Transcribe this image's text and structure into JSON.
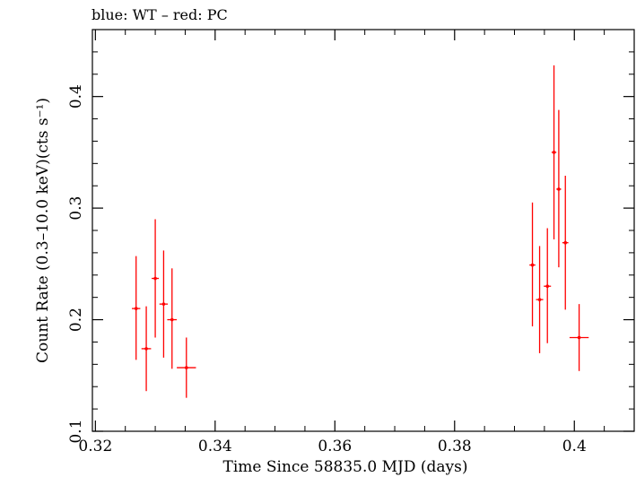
{
  "chart_data": {
    "type": "scatter",
    "title": "blue: WT – red: PC",
    "xlabel": "Time Since 58835.0 MJD (days)",
    "ylabel": "Count Rate (0.3–10.0 keV)(cts s⁻¹)",
    "xlim": [
      0.3195,
      0.41
    ],
    "ylim": [
      0.1,
      0.46
    ],
    "x_ticks": [
      0.32,
      0.34,
      0.36,
      0.38,
      0.4
    ],
    "x_tick_labels": [
      "0.32",
      "0.34",
      "0.36",
      "0.38",
      "0.4"
    ],
    "y_ticks": [
      0.1,
      0.2,
      0.3,
      0.4
    ],
    "y_tick_labels": [
      "0.1",
      "0.2",
      "0.3",
      "0.4"
    ],
    "grid": false,
    "series": [
      {
        "color": "#ff0000",
        "points": [
          {
            "x": 0.3268,
            "xerr": 0.0007,
            "y": 0.21,
            "ylo": 0.164,
            "yhi": 0.257
          },
          {
            "x": 0.3285,
            "xerr": 0.0008,
            "y": 0.174,
            "ylo": 0.136,
            "yhi": 0.212
          },
          {
            "x": 0.33,
            "xerr": 0.0006,
            "y": 0.237,
            "ylo": 0.184,
            "yhi": 0.29
          },
          {
            "x": 0.3314,
            "xerr": 0.0007,
            "y": 0.214,
            "ylo": 0.166,
            "yhi": 0.262
          },
          {
            "x": 0.3328,
            "xerr": 0.0008,
            "y": 0.2,
            "ylo": 0.156,
            "yhi": 0.246
          },
          {
            "x": 0.3352,
            "xerr": 0.0016,
            "y": 0.157,
            "ylo": 0.13,
            "yhi": 0.184
          },
          {
            "x": 0.393,
            "xerr": 0.0005,
            "y": 0.249,
            "ylo": 0.194,
            "yhi": 0.305
          },
          {
            "x": 0.3942,
            "xerr": 0.0006,
            "y": 0.218,
            "ylo": 0.17,
            "yhi": 0.266
          },
          {
            "x": 0.3955,
            "xerr": 0.0006,
            "y": 0.23,
            "ylo": 0.179,
            "yhi": 0.282
          },
          {
            "x": 0.3966,
            "xerr": 0.0004,
            "y": 0.35,
            "ylo": 0.272,
            "yhi": 0.428
          },
          {
            "x": 0.3974,
            "xerr": 0.0004,
            "y": 0.317,
            "ylo": 0.247,
            "yhi": 0.388
          },
          {
            "x": 0.3985,
            "xerr": 0.0005,
            "y": 0.269,
            "ylo": 0.209,
            "yhi": 0.329
          },
          {
            "x": 0.4008,
            "xerr": 0.0016,
            "y": 0.184,
            "ylo": 0.154,
            "yhi": 0.214
          }
        ]
      }
    ]
  }
}
